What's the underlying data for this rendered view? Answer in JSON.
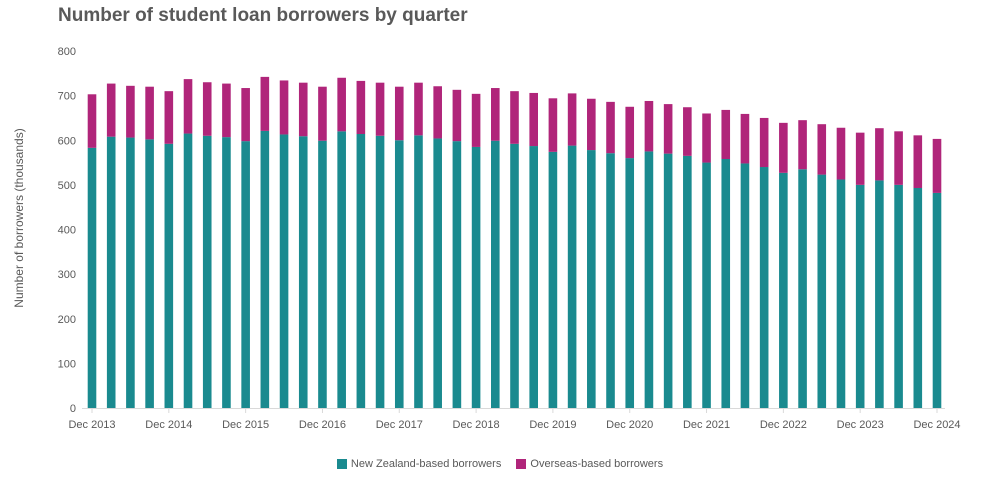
{
  "chart_data": {
    "type": "bar",
    "stacked": true,
    "title": "Number of student loan borrowers by quarter",
    "ylabel": "Number of borrowers (thousands)",
    "xlabel": "",
    "ylim": [
      0,
      800
    ],
    "yticks": [
      "0",
      "100",
      "200",
      "300",
      "400",
      "500",
      "600",
      "700",
      "800"
    ],
    "grid": false,
    "legend_position": "bottom",
    "x_tick_labels": [
      "Dec 2013",
      "Dec 2014",
      "Dec 2015",
      "Dec 2016",
      "Dec 2017",
      "Dec 2018",
      "Dec 2019",
      "Dec 2020",
      "Dec 2021",
      "Dec 2022",
      "Dec 2023",
      "Dec 2024"
    ],
    "categories": [
      "Dec 2013",
      "Mar 2014",
      "Jun 2014",
      "Sep 2014",
      "Dec 2014",
      "Mar 2015",
      "Jun 2015",
      "Sep 2015",
      "Dec 2015",
      "Mar 2016",
      "Jun 2016",
      "Sep 2016",
      "Dec 2016",
      "Mar 2017",
      "Jun 2017",
      "Sep 2017",
      "Dec 2017",
      "Mar 2018",
      "Jun 2018",
      "Sep 2018",
      "Dec 2018",
      "Mar 2019",
      "Jun 2019",
      "Sep 2019",
      "Dec 2019",
      "Mar 2020",
      "Jun 2020",
      "Sep 2020",
      "Dec 2020",
      "Mar 2021",
      "Jun 2021",
      "Sep 2021",
      "Dec 2021",
      "Mar 2022",
      "Jun 2022",
      "Sep 2022",
      "Dec 2022",
      "Mar 2023",
      "Jun 2023",
      "Sep 2023",
      "Dec 2023",
      "Mar 2024",
      "Jun 2024",
      "Sep 2024",
      "Dec 2024"
    ],
    "series": [
      {
        "name": "New Zealand-based borrowers",
        "color": "#1a8a8f",
        "values": [
          583,
          608,
          606,
          602,
          592,
          615,
          610,
          607,
          598,
          621,
          613,
          609,
          599,
          620,
          614,
          610,
          600,
          611,
          604,
          598,
          585,
          599,
          592,
          587,
          574,
          588,
          578,
          571,
          560,
          575,
          570,
          565,
          550,
          558,
          548,
          540,
          527,
          535,
          523,
          512,
          500,
          510,
          500,
          493,
          482
        ]
      },
      {
        "name": "Overseas-based borrowers",
        "color": "#b0257a",
        "values": [
          120,
          119,
          116,
          118,
          118,
          122,
          120,
          120,
          119,
          121,
          121,
          120,
          121,
          120,
          119,
          119,
          120,
          118,
          117,
          115,
          119,
          118,
          118,
          119,
          120,
          117,
          115,
          115,
          115,
          113,
          111,
          109,
          110,
          110,
          111,
          110,
          112,
          110,
          113,
          116,
          117,
          117,
          120,
          118,
          121
        ]
      }
    ]
  }
}
